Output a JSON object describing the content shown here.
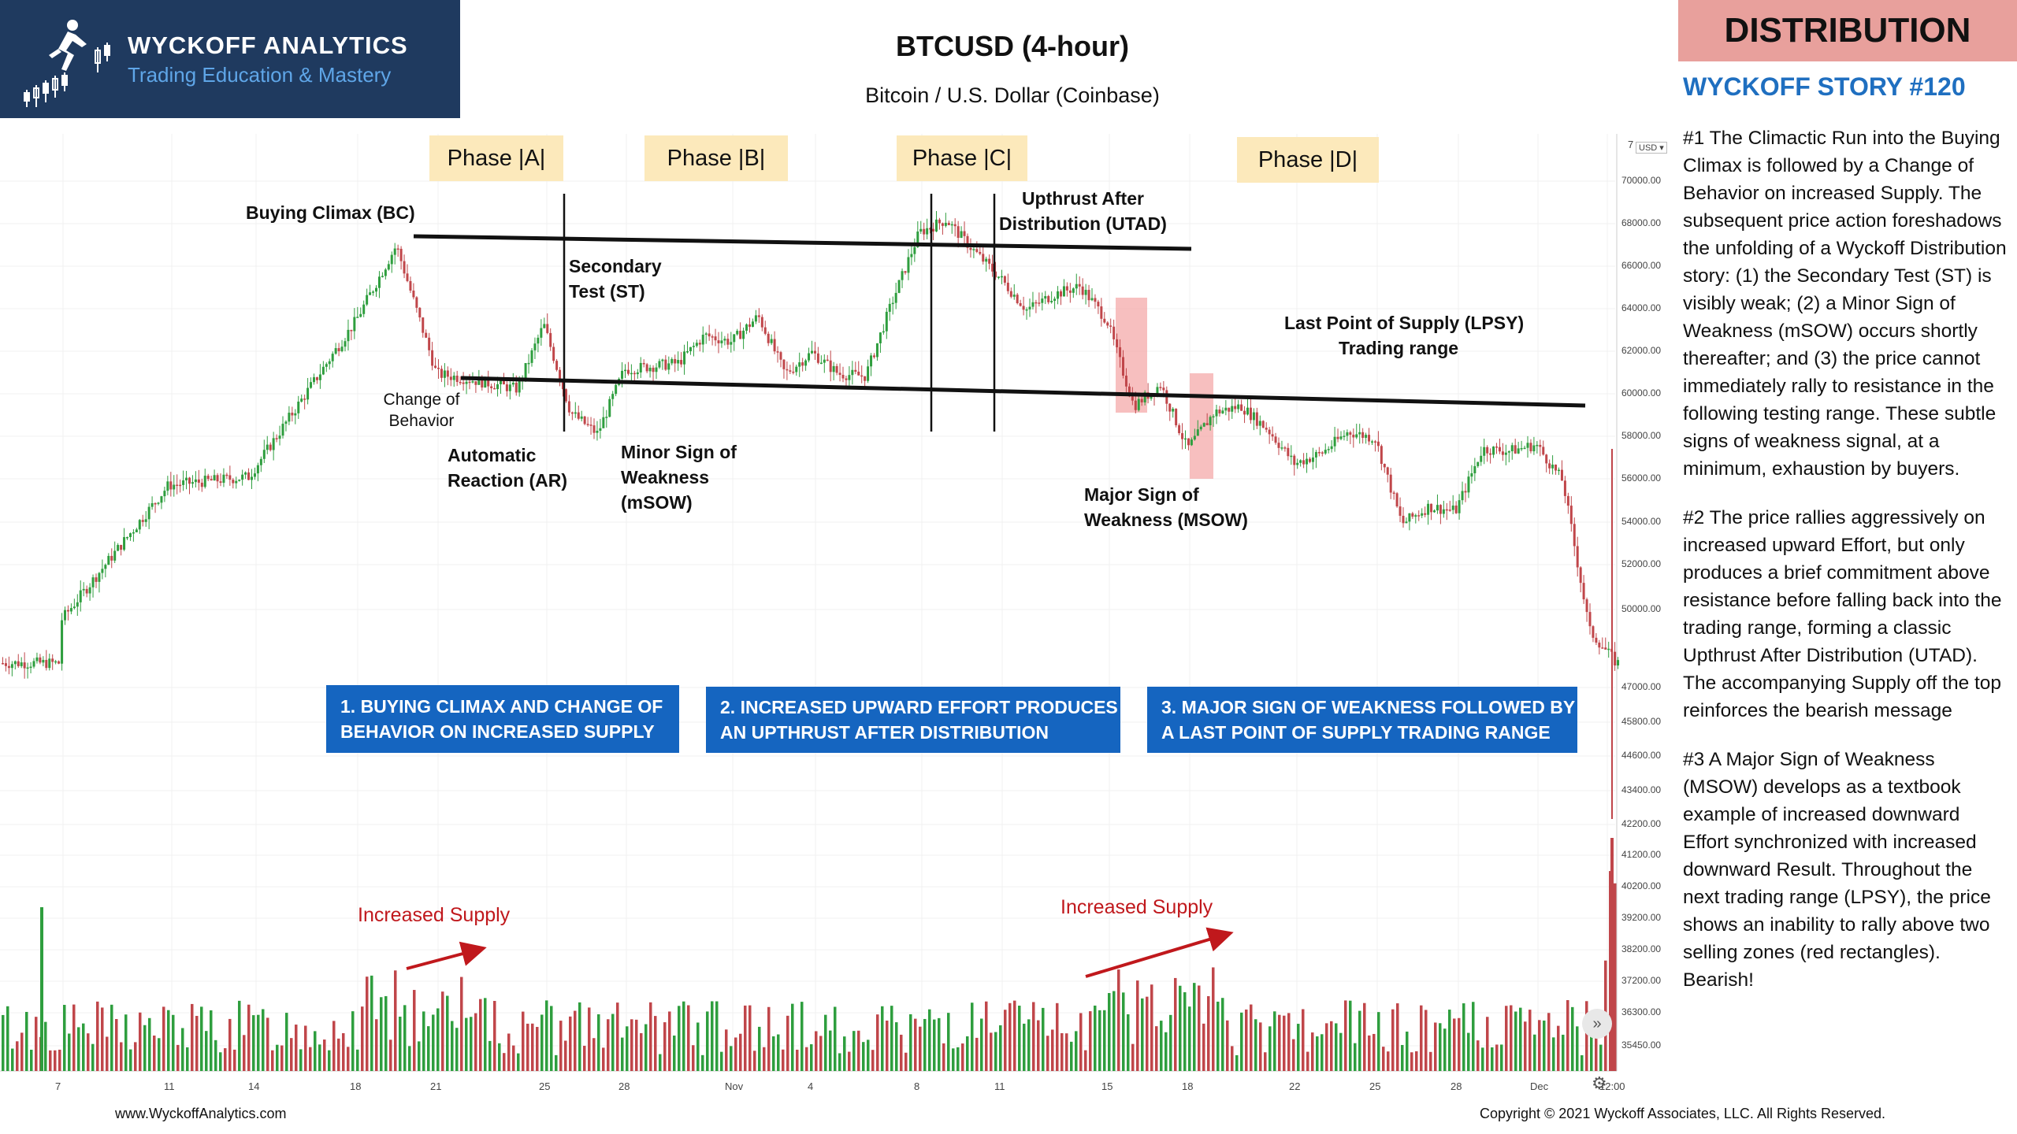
{
  "header": {
    "logo_title": "WYCKOFF ANALYTICS",
    "logo_subtitle": "Trading Education & Mastery",
    "badge": "DISTRIBUTION",
    "story": "WYCKOFF STORY #120"
  },
  "sidebar": {
    "p1": "#1 The Climactic Run into the Buying Climax is followed by a Change of Behavior on increased Supply. The subsequent price action foreshadows the unfolding of a Wyckoff Distribution story: (1) the Secondary Test (ST) is visibly weak; (2) a Minor Sign of Weakness (mSOW) occurs shortly thereafter; and (3) the price cannot immediately rally to resistance in the following testing range. These subtle signs of weakness signal, at a minimum, exhaustion by buyers.",
    "p2": "#2 The price rallies aggressively on increased upward Effort, but only produces a brief commitment above resistance before falling back into the trading range, forming a classic Upthrust After Distribution (UTAD). The accompanying Supply off the top reinforces the bearish message",
    "p3": "#3 A Major Sign of Weakness (MSOW) develops as a textbook example of increased downward Effort synchronized with increased downward Result. Throughout the next trading range (LPSY), the price shows an inability to rally above two selling zones (red rectangles). Bearish!"
  },
  "footer": {
    "left": "www.WyckoffAnalytics.com",
    "right": "Copyright © 2021 Wyckoff Associates, LLC. All Rights Reserved."
  },
  "controls": {
    "scroll_icon": "»",
    "settings_icon": "⚙",
    "axis_top": "7",
    "axis_unit": "USD ▾"
  },
  "colors": {
    "up": "#2e9e3e",
    "down": "#c0464a",
    "accent_blue": "#1565c0",
    "phase_bg": "#fce9bb",
    "badge_bg": "#e8a09c",
    "supply_red": "#c0181c"
  },
  "chart_data": {
    "type": "candlestick",
    "title": "BTCUSD (4-hour)",
    "subtitle": "Bitcoin / U.S. Dollar (Coinbase)",
    "x_ticks": [
      "7",
      "11",
      "14",
      "18",
      "21",
      "25",
      "28",
      "Nov",
      "4",
      "8",
      "11",
      "15",
      "18",
      "22",
      "25",
      "28",
      "Dec",
      "12:00"
    ],
    "y_ticks": [
      "70000.00",
      "68000.00",
      "66000.00",
      "64000.00",
      "62000.00",
      "60000.00",
      "58000.00",
      "56000.00",
      "54000.00",
      "52000.00",
      "50000.00",
      "47000.00",
      "45800.00",
      "44600.00",
      "43400.00",
      "42200.00",
      "41200.00",
      "40200.00",
      "39200.00",
      "38200.00",
      "37200.00",
      "36300.00",
      "35450.00"
    ],
    "price_path": [
      [
        "7",
        49500
      ],
      [
        "11",
        55800
      ],
      [
        "14",
        56200
      ],
      [
        "18",
        63500
      ],
      [
        "19.5",
        67000
      ],
      [
        "21",
        61000
      ],
      [
        "22",
        60800
      ],
      [
        "24",
        60300
      ],
      [
        "25",
        63300
      ],
      [
        "26",
        59200
      ],
      [
        "27",
        58200
      ],
      [
        "28",
        61200
      ],
      [
        "30",
        61500
      ],
      [
        "31",
        62800
      ],
      [
        "Nov",
        62500
      ],
      [
        "2",
        63700
      ],
      [
        "3",
        61000
      ],
      [
        "4",
        62000
      ],
      [
        "5",
        61000
      ],
      [
        "6",
        60900
      ],
      [
        "7",
        64400
      ],
      [
        "8",
        67600
      ],
      [
        "9",
        68200
      ],
      [
        "10",
        66800
      ],
      [
        "11",
        65500
      ],
      [
        "12",
        64000
      ],
      [
        "13",
        64700
      ],
      [
        "14",
        65100
      ],
      [
        "15",
        63500
      ],
      [
        "16",
        59500
      ],
      [
        "17",
        60500
      ],
      [
        "18",
        57500
      ],
      [
        "19",
        59200
      ],
      [
        "20",
        59500
      ],
      [
        "21",
        58400
      ],
      [
        "22",
        56800
      ],
      [
        "23",
        57300
      ],
      [
        "24",
        58300
      ],
      [
        "25",
        58000
      ],
      [
        "26",
        54000
      ],
      [
        "27",
        54800
      ],
      [
        "28",
        54600
      ],
      [
        "29",
        57500
      ],
      [
        "30",
        57400
      ],
      [
        "Dec",
        57700
      ],
      [
        "2",
        56000
      ],
      [
        "3",
        49000
      ],
      [
        "4",
        47500
      ]
    ],
    "resistance_line": {
      "from": [
        "19.5",
        67000
      ],
      "to": [
        "18",
        66300
      ]
    },
    "support_line": {
      "from": [
        "21",
        60000
      ],
      "to": [
        "3",
        58700
      ]
    },
    "phases": [
      "Phase |A|",
      "Phase |B|",
      "Phase |C|",
      "Phase |D|"
    ],
    "annotations": {
      "bc": "Buying Climax (BC)",
      "cob": [
        "Change of",
        "Behavior"
      ],
      "ar": [
        "Automatic",
        "Reaction (AR)"
      ],
      "st": [
        "Secondary",
        "Test (ST)"
      ],
      "msow_minor": [
        "Minor Sign of",
        "Weakness",
        "(mSOW)"
      ],
      "utad": [
        "Upthrust After",
        "Distribution (UTAD)"
      ],
      "lpsy": [
        "Last Point of Supply (LPSY)",
        "Trading range"
      ],
      "msow_major": [
        "Major Sign of",
        "Weakness (MSOW)"
      ],
      "supply1": "Increased Supply",
      "supply2": "Increased Supply"
    },
    "boxes": {
      "b1": [
        "1. BUYING CLIMAX AND CHANGE OF",
        "BEHAVIOR ON INCREASED SUPPLY"
      ],
      "b2": [
        "2. INCREASED UPWARD EFFORT PRODUCES",
        "AN UPTHRUST AFTER DISTRIBUTION"
      ],
      "b3": [
        "3. MAJOR SIGN OF WEAKNESS FOLLOWED BY",
        "A  LAST POINT OF SUPPLY TRADING RANGE"
      ]
    },
    "selling_zones": 2,
    "volume": {
      "shown": true,
      "increased_supply_zones": 2
    },
    "grid": true
  }
}
